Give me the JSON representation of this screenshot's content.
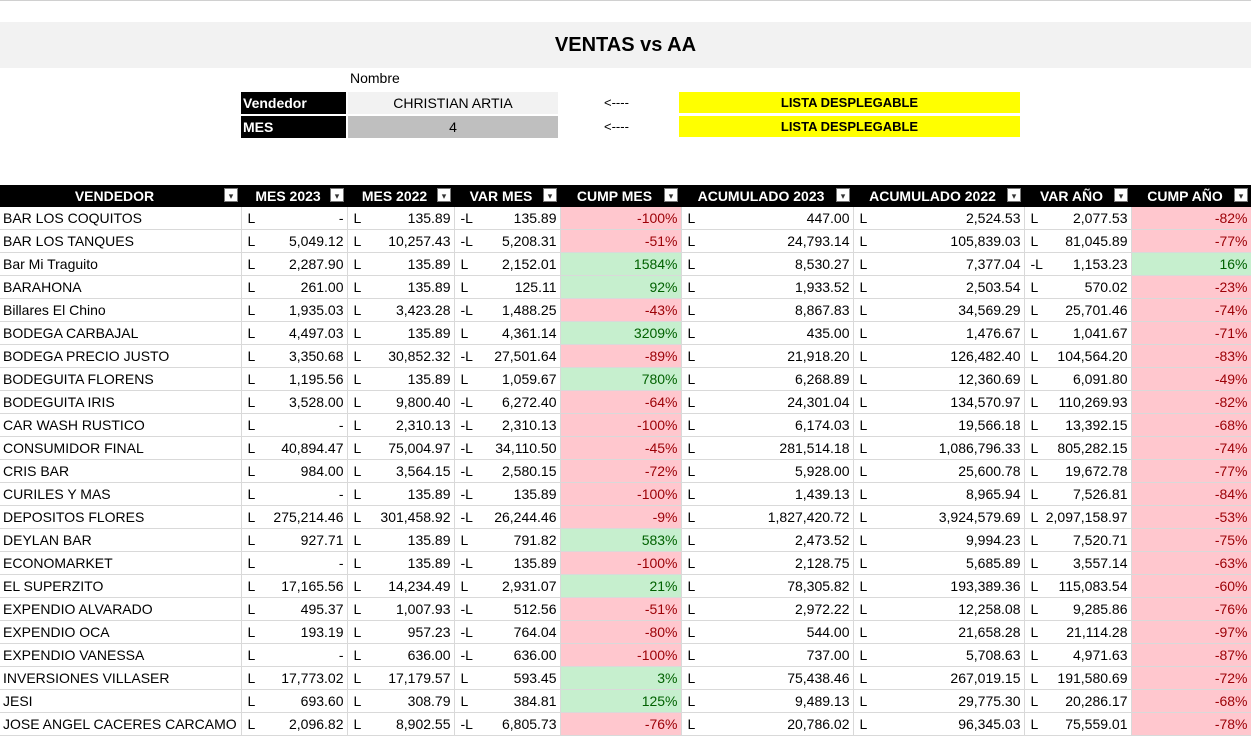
{
  "title": "VENTAS vs AA",
  "filters": {
    "nombre_label": "Nombre",
    "vendedor_label": "Vendedor",
    "vendedor_value": "CHRISTIAN ARTIA",
    "mes_label": "MES",
    "mes_value": "4",
    "arrow": "<----",
    "hint": "LISTA DESPLEGABLE"
  },
  "colors": {
    "negative_bg": "#ffc7ce",
    "positive_bg": "#c6efce",
    "highlight": "#ffff00"
  },
  "table": {
    "headers": [
      "VENDEDOR",
      "MES 2023",
      "MES 2022",
      "VAR MES",
      "CUMP MES",
      "ACUMULADO 2023",
      "ACUMULADO 2022",
      "VAR AÑO",
      "CUMP AÑO"
    ],
    "rows": [
      {
        "name": "BAR LOS COQUITOS",
        "m23": "-",
        "m22": "135.89",
        "vm_sign": "-L",
        "vm": "135.89",
        "cm": "-100%",
        "cm_pos": false,
        "a23": "447.00",
        "a22": "2,524.53",
        "va_sign": "L",
        "va": "2,077.53",
        "ca": "-82%",
        "ca_pos": false
      },
      {
        "name": "BAR LOS TANQUES",
        "m23": "5,049.12",
        "m22": "10,257.43",
        "vm_sign": "-L",
        "vm": "5,208.31",
        "cm": "-51%",
        "cm_pos": false,
        "a23": "24,793.14",
        "a22": "105,839.03",
        "va_sign": "L",
        "va": "81,045.89",
        "ca": "-77%",
        "ca_pos": false
      },
      {
        "name": "Bar Mi Traguito",
        "m23": "2,287.90",
        "m22": "135.89",
        "vm_sign": "L",
        "vm": "2,152.01",
        "cm": "1584%",
        "cm_pos": true,
        "a23": "8,530.27",
        "a22": "7,377.04",
        "va_sign": "-L",
        "va": "1,153.23",
        "ca": "16%",
        "ca_pos": true
      },
      {
        "name": "BARAHONA",
        "m23": "261.00",
        "m22": "135.89",
        "vm_sign": "L",
        "vm": "125.11",
        "cm": "92%",
        "cm_pos": true,
        "a23": "1,933.52",
        "a22": "2,503.54",
        "va_sign": "L",
        "va": "570.02",
        "ca": "-23%",
        "ca_pos": false
      },
      {
        "name": "Billares El Chino",
        "m23": "1,935.03",
        "m22": "3,423.28",
        "vm_sign": "-L",
        "vm": "1,488.25",
        "cm": "-43%",
        "cm_pos": false,
        "a23": "8,867.83",
        "a22": "34,569.29",
        "va_sign": "L",
        "va": "25,701.46",
        "ca": "-74%",
        "ca_pos": false
      },
      {
        "name": "BODEGA CARBAJAL",
        "m23": "4,497.03",
        "m22": "135.89",
        "vm_sign": "L",
        "vm": "4,361.14",
        "cm": "3209%",
        "cm_pos": true,
        "a23": "435.00",
        "a22": "1,476.67",
        "va_sign": "L",
        "va": "1,041.67",
        "ca": "-71%",
        "ca_pos": false
      },
      {
        "name": "BODEGA PRECIO JUSTO",
        "m23": "3,350.68",
        "m22": "30,852.32",
        "vm_sign": "-L",
        "vm": "27,501.64",
        "cm": "-89%",
        "cm_pos": false,
        "a23": "21,918.20",
        "a22": "126,482.40",
        "va_sign": "L",
        "va": "104,564.20",
        "ca": "-83%",
        "ca_pos": false
      },
      {
        "name": "BODEGUITA FLORENS",
        "m23": "1,195.56",
        "m22": "135.89",
        "vm_sign": "L",
        "vm": "1,059.67",
        "cm": "780%",
        "cm_pos": true,
        "a23": "6,268.89",
        "a22": "12,360.69",
        "va_sign": "L",
        "va": "6,091.80",
        "ca": "-49%",
        "ca_pos": false
      },
      {
        "name": "BODEGUITA IRIS",
        "m23": "3,528.00",
        "m22": "9,800.40",
        "vm_sign": "-L",
        "vm": "6,272.40",
        "cm": "-64%",
        "cm_pos": false,
        "a23": "24,301.04",
        "a22": "134,570.97",
        "va_sign": "L",
        "va": "110,269.93",
        "ca": "-82%",
        "ca_pos": false
      },
      {
        "name": "CAR WASH RUSTICO",
        "m23": "-",
        "m22": "2,310.13",
        "vm_sign": "-L",
        "vm": "2,310.13",
        "cm": "-100%",
        "cm_pos": false,
        "a23": "6,174.03",
        "a22": "19,566.18",
        "va_sign": "L",
        "va": "13,392.15",
        "ca": "-68%",
        "ca_pos": false
      },
      {
        "name": "CONSUMIDOR FINAL",
        "m23": "40,894.47",
        "m22": "75,004.97",
        "vm_sign": "-L",
        "vm": "34,110.50",
        "cm": "-45%",
        "cm_pos": false,
        "a23": "281,514.18",
        "a22": "1,086,796.33",
        "va_sign": "L",
        "va": "805,282.15",
        "ca": "-74%",
        "ca_pos": false
      },
      {
        "name": "CRIS BAR",
        "m23": "984.00",
        "m22": "3,564.15",
        "vm_sign": "-L",
        "vm": "2,580.15",
        "cm": "-72%",
        "cm_pos": false,
        "a23": "5,928.00",
        "a22": "25,600.78",
        "va_sign": "L",
        "va": "19,672.78",
        "ca": "-77%",
        "ca_pos": false
      },
      {
        "name": "CURILES Y MAS",
        "m23": "-",
        "m22": "135.89",
        "vm_sign": "-L",
        "vm": "135.89",
        "cm": "-100%",
        "cm_pos": false,
        "a23": "1,439.13",
        "a22": "8,965.94",
        "va_sign": "L",
        "va": "7,526.81",
        "ca": "-84%",
        "ca_pos": false
      },
      {
        "name": "DEPOSITOS FLORES",
        "m23": "275,214.46",
        "m22": "301,458.92",
        "vm_sign": "-L",
        "vm": "26,244.46",
        "cm": "-9%",
        "cm_pos": false,
        "a23": "1,827,420.72",
        "a22": "3,924,579.69",
        "va_sign": "L",
        "va": "2,097,158.97",
        "ca": "-53%",
        "ca_pos": false
      },
      {
        "name": "DEYLAN BAR",
        "m23": "927.71",
        "m22": "135.89",
        "vm_sign": "L",
        "vm": "791.82",
        "cm": "583%",
        "cm_pos": true,
        "a23": "2,473.52",
        "a22": "9,994.23",
        "va_sign": "L",
        "va": "7,520.71",
        "ca": "-75%",
        "ca_pos": false
      },
      {
        "name": "ECONOMARKET",
        "m23": "-",
        "m22": "135.89",
        "vm_sign": "-L",
        "vm": "135.89",
        "cm": "-100%",
        "cm_pos": false,
        "a23": "2,128.75",
        "a22": "5,685.89",
        "va_sign": "L",
        "va": "3,557.14",
        "ca": "-63%",
        "ca_pos": false
      },
      {
        "name": "EL SUPERZITO",
        "m23": "17,165.56",
        "m22": "14,234.49",
        "vm_sign": "L",
        "vm": "2,931.07",
        "cm": "21%",
        "cm_pos": true,
        "a23": "78,305.82",
        "a22": "193,389.36",
        "va_sign": "L",
        "va": "115,083.54",
        "ca": "-60%",
        "ca_pos": false
      },
      {
        "name": "EXPENDIO ALVARADO",
        "m23": "495.37",
        "m22": "1,007.93",
        "vm_sign": "-L",
        "vm": "512.56",
        "cm": "-51%",
        "cm_pos": false,
        "a23": "2,972.22",
        "a22": "12,258.08",
        "va_sign": "L",
        "va": "9,285.86",
        "ca": "-76%",
        "ca_pos": false
      },
      {
        "name": "EXPENDIO OCA",
        "m23": "193.19",
        "m22": "957.23",
        "vm_sign": "-L",
        "vm": "764.04",
        "cm": "-80%",
        "cm_pos": false,
        "a23": "544.00",
        "a22": "21,658.28",
        "va_sign": "L",
        "va": "21,114.28",
        "ca": "-97%",
        "ca_pos": false
      },
      {
        "name": "EXPENDIO VANESSA",
        "m23": "-",
        "m22": "636.00",
        "vm_sign": "-L",
        "vm": "636.00",
        "cm": "-100%",
        "cm_pos": false,
        "a23": "737.00",
        "a22": "5,708.63",
        "va_sign": "L",
        "va": "4,971.63",
        "ca": "-87%",
        "ca_pos": false
      },
      {
        "name": "INVERSIONES VILLASER",
        "m23": "17,773.02",
        "m22": "17,179.57",
        "vm_sign": "L",
        "vm": "593.45",
        "cm": "3%",
        "cm_pos": true,
        "a23": "75,438.46",
        "a22": "267,019.15",
        "va_sign": "L",
        "va": "191,580.69",
        "ca": "-72%",
        "ca_pos": false
      },
      {
        "name": "JESI",
        "m23": "693.60",
        "m22": "308.79",
        "vm_sign": "L",
        "vm": "384.81",
        "cm": "125%",
        "cm_pos": true,
        "a23": "9,489.13",
        "a22": "29,775.30",
        "va_sign": "L",
        "va": "20,286.17",
        "ca": "-68%",
        "ca_pos": false
      },
      {
        "name": "JOSE ANGEL CACERES CARCAMO",
        "m23": "2,096.82",
        "m22": "8,902.55",
        "vm_sign": "-L",
        "vm": "6,805.73",
        "cm": "-76%",
        "cm_pos": false,
        "a23": "20,786.02",
        "a22": "96,345.03",
        "va_sign": "L",
        "va": "75,559.01",
        "ca": "-78%",
        "ca_pos": false
      }
    ]
  }
}
